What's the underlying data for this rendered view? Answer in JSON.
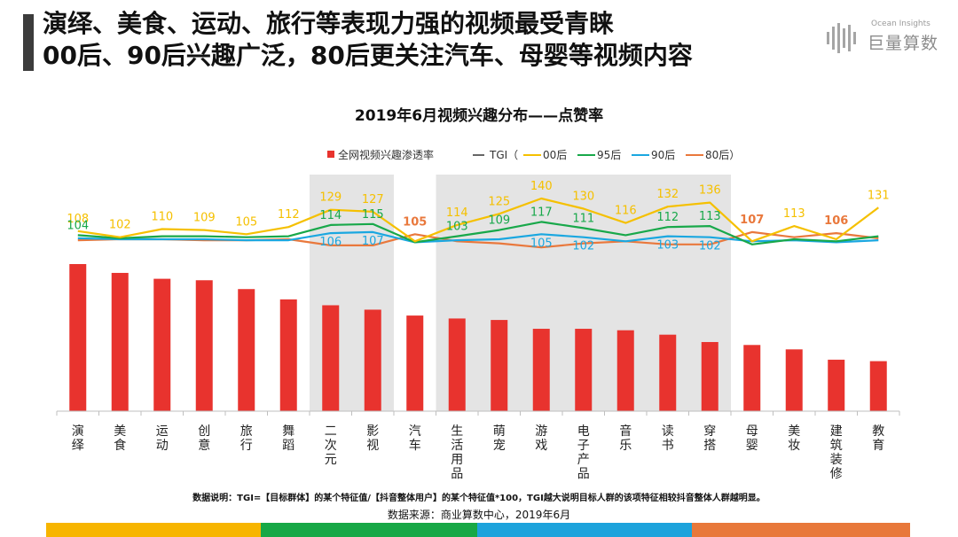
{
  "header": {
    "title_line1": "演绎、美食、运动、旅行等表现力强的视频最受青睐",
    "title_line2": "00后、90后兴趣广泛，80后更关注汽车、母婴等视频内容"
  },
  "logo": {
    "small_text": "Ocean Insights",
    "big_text": "巨量算数",
    "icon": "bar-logo-icon"
  },
  "chart_data": {
    "type": "bar",
    "title": "2019年6月视频兴趣分布——点赞率",
    "categories": [
      "演绎",
      "美食",
      "运动",
      "创意",
      "旅行",
      "舞蹈",
      "二次元",
      "影视",
      "汽车",
      "生活用品",
      "萌宠",
      "游戏",
      "电子产品",
      "音乐",
      "读书",
      "穿搭",
      "母婴",
      "美妆",
      "建筑装修",
      "教育"
    ],
    "legend": {
      "bar": "全网视频兴趣渗透率",
      "tgi": "TGI（",
      "s00": "00后",
      "s95": "95后",
      "s90": "90后",
      "s80": "80后）"
    },
    "bar_values": [
      100,
      94,
      90,
      89,
      83,
      76,
      72,
      69,
      65,
      63,
      62,
      56,
      56,
      55,
      52,
      47,
      45,
      42,
      35,
      34
    ],
    "highlight_groups": [
      [
        6,
        7
      ],
      [
        9,
        15
      ]
    ],
    "series": [
      {
        "name": "00后",
        "color": "#f5c000",
        "values": [
          108,
          102,
          110,
          109,
          105,
          112,
          129,
          127,
          98,
          114,
          125,
          140,
          130,
          116,
          132,
          136,
          98,
          113,
          100,
          131
        ]
      },
      {
        "name": "95后",
        "color": "#18a84a",
        "values": [
          104,
          101,
          103,
          103,
          102,
          103,
          114,
          115,
          97,
          103,
          109,
          117,
          111,
          104,
          112,
          113,
          95,
          100,
          98,
          103
        ]
      },
      {
        "name": "90后",
        "color": "#1aa7e0",
        "values": [
          101,
          100,
          100,
          100,
          99,
          99,
          106,
          107,
          97,
          99,
          100,
          105,
          102,
          98,
          103,
          102,
          98,
          99,
          97,
          99
        ]
      },
      {
        "name": "80后",
        "color": "#e9783c",
        "values": [
          99,
          100,
          100,
          99,
          99,
          100,
          94,
          94,
          105,
          98,
          96,
          92,
          96,
          98,
          95,
          95,
          107,
          102,
          106,
          101
        ]
      }
    ],
    "labels": [
      {
        "idx": 0,
        "series": 0,
        "text": "108"
      },
      {
        "idx": 0,
        "series": 1,
        "text": "104"
      },
      {
        "idx": 1,
        "series": 0,
        "text": "102"
      },
      {
        "idx": 2,
        "series": 0,
        "text": "110"
      },
      {
        "idx": 3,
        "series": 0,
        "text": "109"
      },
      {
        "idx": 4,
        "series": 0,
        "text": "105"
      },
      {
        "idx": 5,
        "series": 0,
        "text": "112"
      },
      {
        "idx": 6,
        "series": 0,
        "text": "129"
      },
      {
        "idx": 6,
        "series": 1,
        "text": "114"
      },
      {
        "idx": 6,
        "series": 2,
        "text": "106"
      },
      {
        "idx": 7,
        "series": 0,
        "text": "127"
      },
      {
        "idx": 7,
        "series": 1,
        "text": "115"
      },
      {
        "idx": 7,
        "series": 2,
        "text": "107"
      },
      {
        "idx": 8,
        "series": 3,
        "text": "105",
        "bold": true
      },
      {
        "idx": 9,
        "series": 0,
        "text": "114"
      },
      {
        "idx": 9,
        "series": 1,
        "text": "103"
      },
      {
        "idx": 10,
        "series": 0,
        "text": "125"
      },
      {
        "idx": 10,
        "series": 1,
        "text": "109"
      },
      {
        "idx": 11,
        "series": 0,
        "text": "140"
      },
      {
        "idx": 11,
        "series": 1,
        "text": "117"
      },
      {
        "idx": 11,
        "series": 2,
        "text": "105"
      },
      {
        "idx": 12,
        "series": 0,
        "text": "130"
      },
      {
        "idx": 12,
        "series": 1,
        "text": "111"
      },
      {
        "idx": 12,
        "series": 2,
        "text": "102"
      },
      {
        "idx": 13,
        "series": 0,
        "text": "116"
      },
      {
        "idx": 14,
        "series": 0,
        "text": "132"
      },
      {
        "idx": 14,
        "series": 1,
        "text": "112"
      },
      {
        "idx": 14,
        "series": 2,
        "text": "103"
      },
      {
        "idx": 15,
        "series": 0,
        "text": "136"
      },
      {
        "idx": 15,
        "series": 1,
        "text": "113"
      },
      {
        "idx": 15,
        "series": 2,
        "text": "102"
      },
      {
        "idx": 16,
        "series": 3,
        "text": "107",
        "bold": true
      },
      {
        "idx": 17,
        "series": 0,
        "text": "113"
      },
      {
        "idx": 18,
        "series": 3,
        "text": "106",
        "bold": true
      },
      {
        "idx": 19,
        "series": 0,
        "text": "131"
      }
    ],
    "colors": {
      "bar": "#e8332e",
      "tgi": "#666666",
      "highlight": "#e4e4e4",
      "axis": "#bfbfbf"
    }
  },
  "notes": {
    "note1": "数据说明：TGI=【目标群体】的某个特征值/【抖音整体用户】的某个特征值*100，TGI越大说明目标人群的该项特征相较抖音整体人群越明显。",
    "note2": "数据来源：商业算数中心，2019年6月"
  },
  "bottom_strip_colors": [
    "#f7b500",
    "#17a846",
    "#1ca3dc",
    "#e8783a"
  ]
}
